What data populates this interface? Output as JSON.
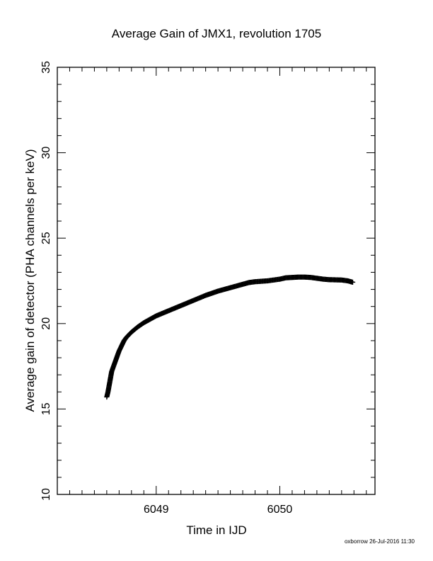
{
  "chart_data": {
    "type": "scatter",
    "title": "Average Gain of JMX1, revolution 1705",
    "xlabel": "Time in IJD",
    "ylabel": "Average gain of detector (PHA channels per keV)",
    "xlim": [
      6048.2,
      6050.77
    ],
    "ylim": [
      10,
      35
    ],
    "x_major_ticks": [
      6049,
      6050
    ],
    "x_tick_labels": [
      "6049",
      "6050"
    ],
    "x_minor_step": 0.1,
    "y_major_ticks": [
      10,
      15,
      20,
      25,
      30,
      35
    ],
    "y_tick_labels": [
      "10",
      "15",
      "20",
      "25",
      "30",
      "35"
    ],
    "y_minor_step": 1,
    "grid": false,
    "legend": "none",
    "marker": "plus",
    "color": "#000000",
    "series": [
      {
        "x": [
          6048.6,
          6048.61,
          6048.62,
          6048.63,
          6048.64,
          6048.66,
          6048.68,
          6048.7,
          6048.72,
          6048.74,
          6048.76,
          6048.8,
          6048.85,
          6048.9,
          6048.95,
          6049.0,
          6049.1,
          6049.2,
          6049.3,
          6049.4,
          6049.5,
          6049.6,
          6049.7,
          6049.75,
          6049.8,
          6049.9,
          6050.0,
          6050.05,
          6050.1,
          6050.15,
          6050.2,
          6050.25,
          6050.3,
          6050.35,
          6050.4,
          6050.45,
          6050.5,
          6050.55,
          6050.59
        ],
        "y": [
          15.7,
          16.0,
          16.4,
          16.8,
          17.2,
          17.6,
          18.0,
          18.4,
          18.7,
          19.0,
          19.2,
          19.5,
          19.8,
          20.05,
          20.25,
          20.45,
          20.75,
          21.05,
          21.35,
          21.65,
          21.9,
          22.1,
          22.3,
          22.4,
          22.45,
          22.5,
          22.6,
          22.68,
          22.7,
          22.72,
          22.72,
          22.7,
          22.65,
          22.6,
          22.57,
          22.56,
          22.55,
          22.5,
          22.42
        ]
      }
    ]
  },
  "footer": {
    "stamp": "oxborrow 26-Jul-2016 11:30"
  }
}
